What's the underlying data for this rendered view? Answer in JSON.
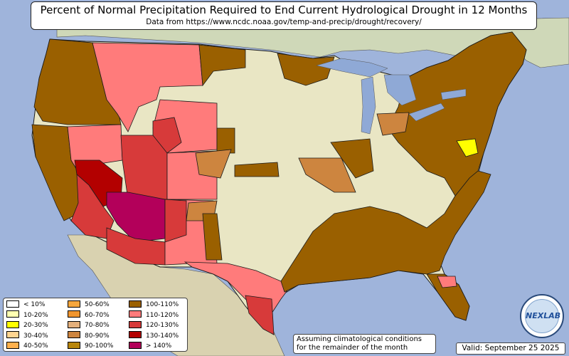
{
  "title": "Percent of Normal Precipitation Required to End Current Hydrological Drought in 12 Months",
  "subtitle": "Data from https://www.ncdc.noaa.gov/temp-and-precip/drought/recovery/",
  "note_line1": "Assuming climatological conditions",
  "note_line2": "for the remainder of the month",
  "valid": "Valid: September 25 2025",
  "logo_text": "NEXLAB",
  "colors": {
    "ocean": "#9fb4db",
    "land": "#e9e6c4",
    "land_west": "#d9d2b0",
    "canada": "#cfd8b8",
    "lakes": "#8fa9d6",
    "border": "#1a1a1a"
  },
  "legend": [
    {
      "label": "< 10%",
      "color": "#ffffff"
    },
    {
      "label": "10-20%",
      "color": "#ffffb2"
    },
    {
      "label": "20-30%",
      "color": "#ffff00"
    },
    {
      "label": "30-40%",
      "color": "#ffd591"
    },
    {
      "label": "40-50%",
      "color": "#ffb14e"
    },
    {
      "label": "50-60%",
      "color": "#f5a63c"
    },
    {
      "label": "60-70%",
      "color": "#f0952e"
    },
    {
      "label": "70-80%",
      "color": "#e4b07c"
    },
    {
      "label": "80-90%",
      "color": "#cd853f"
    },
    {
      "label": "90-100%",
      "color": "#b8860b"
    },
    {
      "label": "100-110%",
      "color": "#9a6000"
    },
    {
      "label": "110-120%",
      "color": "#ff7b7b"
    },
    {
      "label": "120-130%",
      "color": "#d73a3a"
    },
    {
      "label": "130-140%",
      "color": "#b30000"
    },
    {
      "label": "> 140%",
      "color": "#b3005a"
    }
  ],
  "regions": [
    {
      "name": "pacific-northwest",
      "category": "100-110%"
    },
    {
      "name": "california",
      "category": "100-110%"
    },
    {
      "name": "great-basin-nevada",
      "category": "110-120%"
    },
    {
      "name": "southern-nevada",
      "category": "130-140%"
    },
    {
      "name": "southeast-california",
      "category": "120-130%"
    },
    {
      "name": "arizona-northwest",
      "category": "> 140%"
    },
    {
      "name": "utah",
      "category": "120-130%"
    },
    {
      "name": "new-mexico",
      "category": "110-120%"
    },
    {
      "name": "texas",
      "category": "110-120%"
    },
    {
      "name": "south-texas",
      "category": "120-130%"
    },
    {
      "name": "montana",
      "category": "110-120%"
    },
    {
      "name": "wyoming",
      "category": "120-130%"
    },
    {
      "name": "colorado",
      "category": "110-120%"
    },
    {
      "name": "gulf-coast",
      "category": "100-110%"
    },
    {
      "name": "mid-atlantic-northeast",
      "category": "100-110%"
    },
    {
      "name": "maryland",
      "category": "20-30%"
    },
    {
      "name": "florida",
      "category": "100-110%"
    },
    {
      "name": "great-lakes",
      "category": "80-90%"
    },
    {
      "name": "oklahoma-panhandle",
      "category": "80-90%"
    }
  ]
}
